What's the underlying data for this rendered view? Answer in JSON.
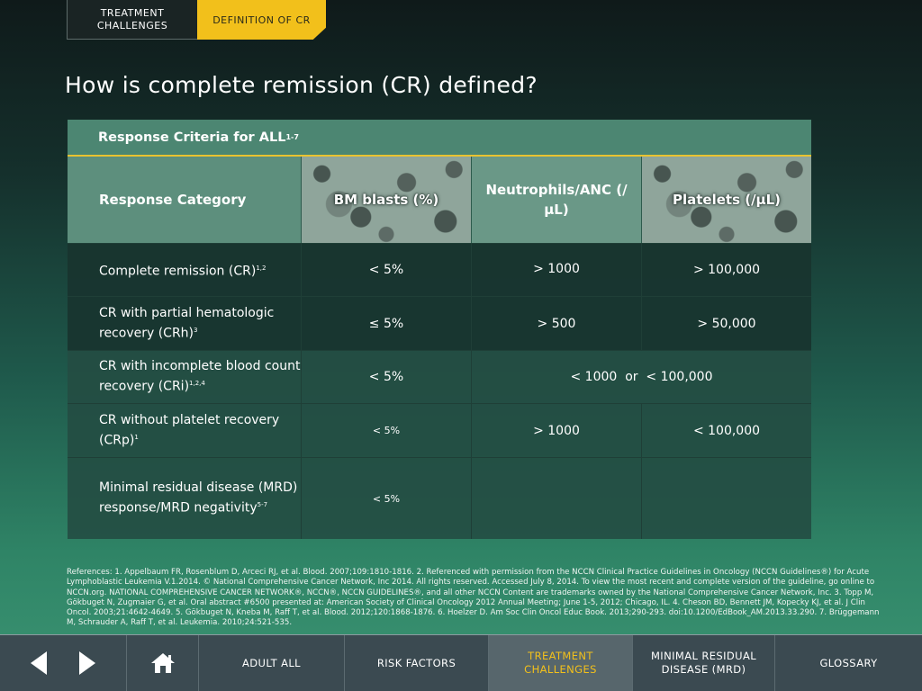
{
  "top_tabs": {
    "previous": "TREATMENT CHALLENGES",
    "active": "DEFINITION OF CR"
  },
  "page_title": "How is complete remission (CR) defined?",
  "table": {
    "header": "Response Criteria for ALL",
    "header_sup": "1-7",
    "columns": {
      "category": "Response Category",
      "bm": "BM blasts (%)",
      "neutrophils": "Neutrophils/ANC (/µL)",
      "platelets": "Platelets (/µL)"
    },
    "rows": [
      {
        "category": "Complete remission (CR)",
        "sup": "1,2",
        "bm": "< 5%",
        "neutrophils": "> 1000",
        "platelets": "> 100,000"
      },
      {
        "category": "CR with partial hematologic recovery (CRh)",
        "sup": "3",
        "bm": "≤ 5%",
        "neutrophils": "> 500",
        "platelets": "> 50,000"
      },
      {
        "category": "CR with incomplete blood count recovery (CRi)",
        "sup": "1,2,4",
        "bm": "< 5%",
        "combined": "< 1000  or  < 100,000"
      },
      {
        "category": "CR without platelet recovery (CRp)",
        "sup": "1",
        "bm": "< 5%",
        "neutrophils": "> 1000",
        "platelets": "< 100,000"
      },
      {
        "category": "Minimal residual disease (MRD) response/MRD negativity",
        "sup": "5-7",
        "bm": "< 5%",
        "neutrophils": "",
        "platelets": ""
      }
    ]
  },
  "references": "References: 1. Appelbaum FR, Rosenblum D, Arceci RJ, et al. Blood. 2007;109:1810-1816. 2. Referenced with permission from the NCCN Clinical Practice Guidelines in Oncology (NCCN Guidelines®) for Acute Lymphoblastic Leukemia V.1.2014. © National Comprehensive Cancer Network, Inc 2014. All rights reserved. Accessed July 8, 2014. To view the most recent and complete version of the guideline, go online to NCCN.org. NATIONAL COMPREHENSIVE CANCER NETWORK®, NCCN®, NCCN GUIDELINES®, and all other NCCN Content are trademarks owned by the National Comprehensive Cancer Network, Inc. 3. Topp M, Gökbuget N, Zugmaier G, et al. Oral abstract #6500 presented at: American Society of Clinical Oncology 2012 Annual Meeting; June 1-5, 2012; Chicago, IL. 4. Cheson BD, Bennett JM, Kopecky KJ, et al. J Clin Oncol. 2003;21:4642-4649. 5. Gökbuget N, Kneba M, Raff T, et al. Blood. 2012;120:1868-1876. 6. Hoelzer D. Am Soc Clin Oncol Educ Book. 2013;290-293. doi:10.1200/EdBook_AM.2013.33.290. 7. Brüggemann M, Schrauder A, Raff T, et al. Leukemia. 2010;24:521-535.",
  "nav": {
    "adult_all": "ADULT ALL",
    "risk_factors": "RISK FACTORS",
    "treatment_challenges": "TREATMENT CHALLENGES",
    "mrd": "MINIMAL RESIDUAL DISEASE (MRD)",
    "glossary": "GLOSSARY"
  },
  "colors": {
    "accent": "#f2c01b",
    "nav_bg": "#3b4a51",
    "table_header": "#4c8672"
  },
  "icons": [
    "left-arrow-icon",
    "right-arrow-icon",
    "home-icon"
  ]
}
